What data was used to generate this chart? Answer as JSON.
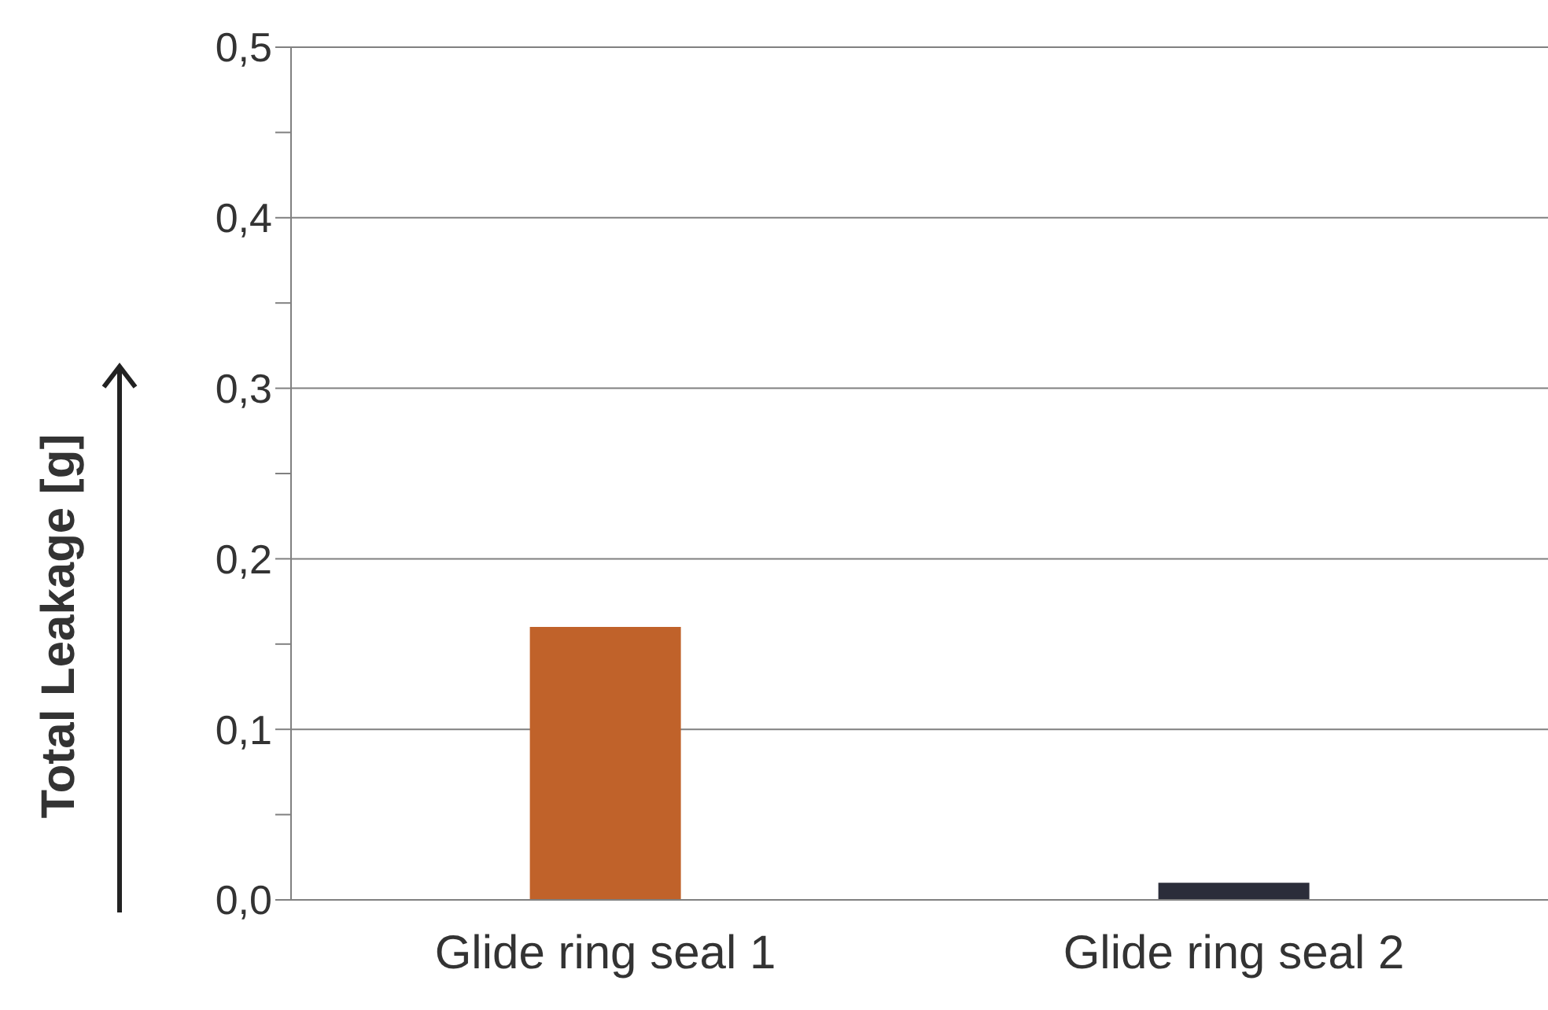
{
  "chart_data": {
    "type": "bar",
    "ylabel": "Total Leakage [g]",
    "categories": [
      "Glide ring seal 1",
      "Glide ring seal 2"
    ],
    "values": [
      0.16,
      0.01
    ],
    "colors": [
      "#c0622a",
      "#2b2d3a"
    ],
    "ylim": [
      0,
      0.5
    ],
    "yticks": [
      {
        "value": 0,
        "label": "0,0"
      },
      {
        "value": 0.05,
        "label": null
      },
      {
        "value": 0.1,
        "label": "0,1"
      },
      {
        "value": 0.15,
        "label": null
      },
      {
        "value": 0.2,
        "label": "0,2"
      },
      {
        "value": 0.25,
        "label": null
      },
      {
        "value": 0.3,
        "label": "0,3"
      },
      {
        "value": 0.35,
        "label": null
      },
      {
        "value": 0.4,
        "label": "0,4"
      },
      {
        "value": 0.45,
        "label": null
      },
      {
        "value": 0.5,
        "label": "0,5"
      }
    ],
    "grid": "y"
  }
}
